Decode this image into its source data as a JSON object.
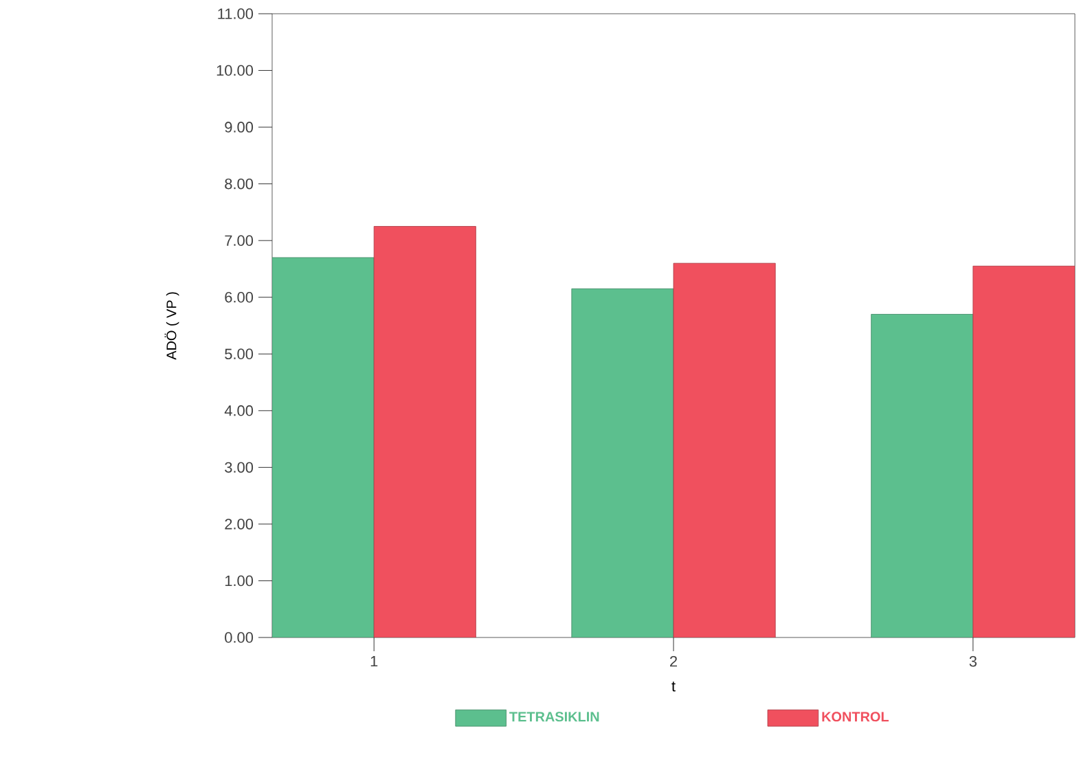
{
  "chart_data": {
    "type": "bar",
    "xlabel": "t",
    "ylabel": "ADÖ ( VP )",
    "categories": [
      "1",
      "2",
      "3"
    ],
    "series": [
      {
        "name": "TETRASIKLIN",
        "color": "#5cbf8e",
        "values": [
          6.7,
          6.15,
          5.7
        ]
      },
      {
        "name": "KONTROL",
        "color": "#f0505e",
        "values": [
          7.25,
          6.6,
          6.55
        ]
      }
    ],
    "ylim": [
      0,
      11
    ],
    "yticks": [
      {
        "value": 0,
        "label": "0.00"
      },
      {
        "value": 1,
        "label": "1.00"
      },
      {
        "value": 2,
        "label": "2.00"
      },
      {
        "value": 3,
        "label": "3.00"
      },
      {
        "value": 4,
        "label": "4.00"
      },
      {
        "value": 5,
        "label": "5.00"
      },
      {
        "value": 6,
        "label": "6.00"
      },
      {
        "value": 7,
        "label": "7.00"
      },
      {
        "value": 8,
        "label": "8.00"
      },
      {
        "value": 9,
        "label": "9.00"
      },
      {
        "value": 10,
        "label": "10.00"
      },
      {
        "value": 11,
        "label": "11.00"
      }
    ],
    "grid": false,
    "legend": "bottom"
  }
}
